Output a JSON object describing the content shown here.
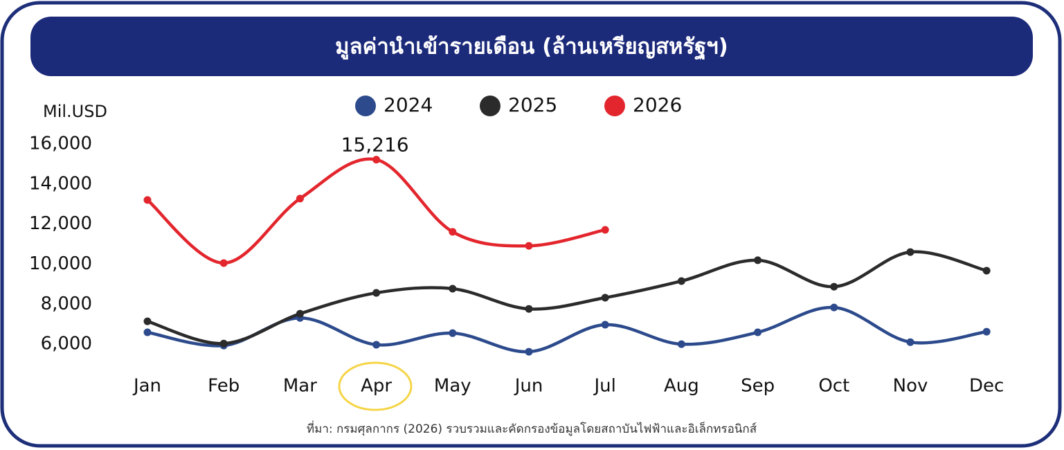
{
  "chart_data": {
    "type": "line",
    "title": "มูลค่านำเข้ารายเดือน (ล้านเหรียญสหรัฐฯ)",
    "y_label": "Mil.USD",
    "source": "ที่มา: กรมศุลกากร (2026) รวบรวมและคัดกรองข้อมูลโดยสถาบันไฟฟ้าและอิเล็กทรอนิกส์",
    "categories": [
      "Jan",
      "Feb",
      "Mar",
      "Apr",
      "May",
      "Jun",
      "Jul",
      "Aug",
      "Sep",
      "Oct",
      "Nov",
      "Dec"
    ],
    "series": [
      {
        "name": "2024",
        "color": "#2c4a8c",
        "values": [
          6590,
          5930,
          7310,
          5970,
          6550,
          5620,
          6970,
          6000,
          6590,
          7830,
          6100,
          6620
        ]
      },
      {
        "name": "2025",
        "color": "#2b2b2b",
        "values": [
          7140,
          6030,
          7520,
          8560,
          8770,
          7760,
          8320,
          9150,
          10190,
          8870,
          10600,
          9670
        ]
      },
      {
        "name": "2026",
        "color": "#e3262d",
        "values": [
          13200,
          10050,
          13270,
          15216,
          11610,
          10910,
          11710,
          null,
          null,
          null,
          null,
          null
        ],
        "value_labels": [
          null,
          null,
          null,
          "15,216",
          null,
          null,
          null,
          null,
          null,
          null,
          null,
          null
        ]
      }
    ],
    "ylim": [
      5000,
      17000
    ],
    "yticks": [
      {
        "value": 6000,
        "label": "6,000"
      },
      {
        "value": 8000,
        "label": "8,000"
      },
      {
        "value": 10000,
        "label": "10,000"
      },
      {
        "value": 12000,
        "label": "12,000"
      },
      {
        "value": 14000,
        "label": "14,000"
      },
      {
        "value": 16000,
        "label": "16,000"
      }
    ],
    "grid": false,
    "legend": "top"
  }
}
